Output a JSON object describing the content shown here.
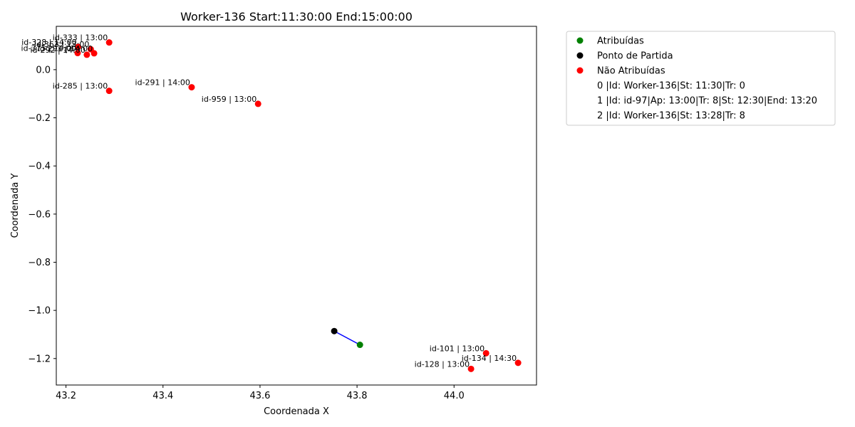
{
  "chart_data": {
    "type": "scatter",
    "title": "Worker-136 Start:11:30:00 End:15:00:00",
    "xlabel": "Coordenada X",
    "ylabel": "Coordenada Y",
    "xlim": [
      43.18,
      44.17
    ],
    "ylim": [
      -1.31,
      0.18
    ],
    "grid": false,
    "legend_placement": "outside-right",
    "x_ticks": [
      43.2,
      43.4,
      43.6,
      43.8,
      44.0
    ],
    "x_tick_labels": [
      "43.2",
      "43.4",
      "43.6",
      "43.8",
      "44.0"
    ],
    "y_ticks": [
      0.0,
      -0.2,
      -0.4,
      -0.6,
      -0.8,
      -1.0,
      -1.2
    ],
    "y_tick_labels": [
      "0.0",
      "−0.2",
      "−0.4",
      "−0.6",
      "−0.8",
      "−1.0",
      "−1.2"
    ],
    "colors": {
      "assigned": "#008000",
      "start": "#000000",
      "unassigned": "#ff0000",
      "route": "#0000ff"
    },
    "series": [
      {
        "name": "Atribuídas",
        "color": "#008000",
        "points": [
          {
            "x": 43.806,
            "y": -1.143,
            "label": ""
          }
        ]
      },
      {
        "name": "Ponto de Partida",
        "color": "#000000",
        "points": [
          {
            "x": 43.753,
            "y": -1.086,
            "label": ""
          }
        ]
      },
      {
        "name": "Não Atribuídas",
        "color": "#ff0000",
        "points": [
          {
            "x": 43.289,
            "y": 0.113,
            "label": "id-333 | 13:00"
          },
          {
            "x": 43.225,
            "y": 0.095,
            "label": "id-328 | 14:00"
          },
          {
            "x": 43.251,
            "y": 0.085,
            "label": "id-363 | 13:00"
          },
          {
            "x": 43.224,
            "y": 0.069,
            "label": "id-375 | 14:00"
          },
          {
            "x": 43.243,
            "y": 0.062,
            "label": "id-292 | 14:00"
          },
          {
            "x": 43.258,
            "y": 0.068,
            "label": "id-291 | 14:00"
          },
          {
            "x": 43.289,
            "y": -0.088,
            "label": "id-285 | 13:00"
          },
          {
            "x": 43.459,
            "y": -0.073,
            "label": "id-291 | 14:00"
          },
          {
            "x": 43.596,
            "y": -0.142,
            "label": "id-959 | 13:00"
          },
          {
            "x": 44.066,
            "y": -1.178,
            "label": "id-101 | 13:00"
          },
          {
            "x": 44.132,
            "y": -1.218,
            "label": "id-134 | 14:30"
          },
          {
            "x": 44.035,
            "y": -1.243,
            "label": "id-128 | 13:00"
          }
        ]
      }
    ],
    "route": [
      {
        "x": 43.753,
        "y": -1.086
      },
      {
        "x": 43.806,
        "y": -1.143
      }
    ],
    "legend_extra": [
      "0 |Id: Worker-136|St: 11:30|Tr: 0",
      "1 |Id: id-97|Ap: 13:00|Tr: 8|St: 12:30|End: 13:20",
      "2 |Id: Worker-136|St: 13:28|Tr: 8"
    ]
  }
}
